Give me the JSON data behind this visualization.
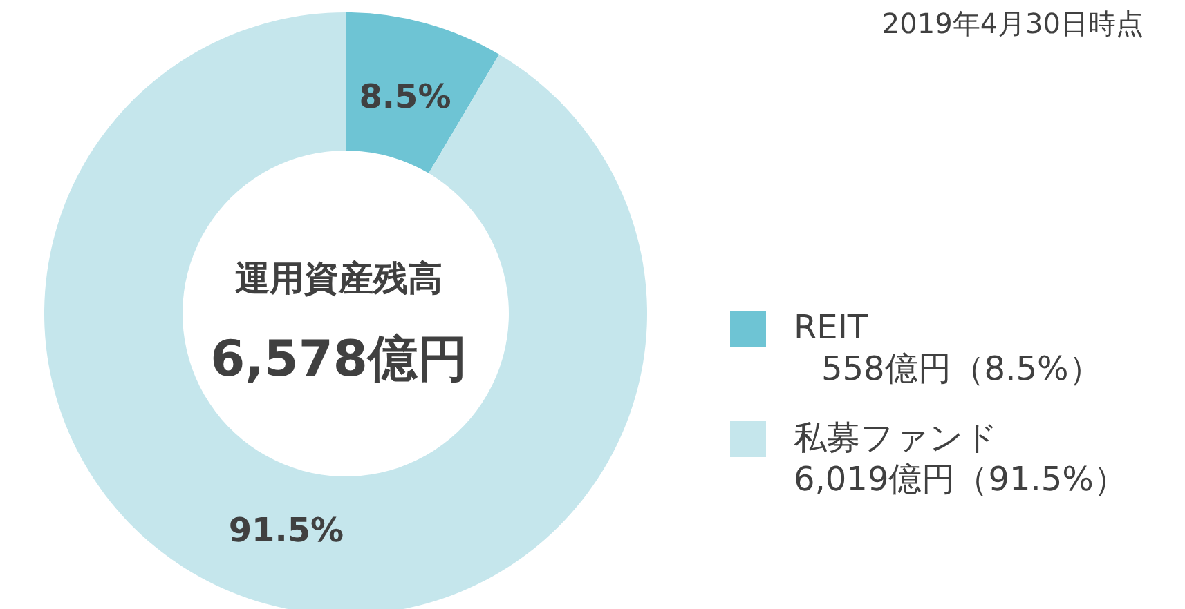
{
  "chart_data": {
    "type": "donut",
    "title": "運用資産残高",
    "subtitle": "6,578億円",
    "categories": [
      "REIT",
      "私募ファンド"
    ],
    "values": [
      8.5,
      91.5
    ],
    "colors": [
      "#6ec4d4",
      "#c5e6ec"
    ],
    "value_labels": [
      "8.5%",
      "91.5%"
    ],
    "legend": "right",
    "annotations": [
      "2019年4月30日時点",
      "558億円（8.5%）",
      "6,019億円（91.5%）"
    ]
  }
}
